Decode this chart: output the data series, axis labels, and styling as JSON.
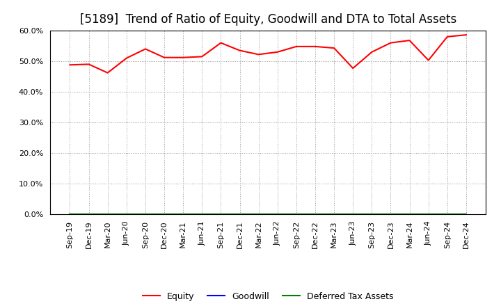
{
  "title": "[5189]  Trend of Ratio of Equity, Goodwill and DTA to Total Assets",
  "x_labels": [
    "Sep-19",
    "Dec-19",
    "Mar-20",
    "Jun-20",
    "Sep-20",
    "Dec-20",
    "Mar-21",
    "Jun-21",
    "Sep-21",
    "Dec-21",
    "Mar-22",
    "Jun-22",
    "Sep-22",
    "Dec-22",
    "Mar-23",
    "Jun-23",
    "Sep-23",
    "Dec-23",
    "Mar-24",
    "Jun-24",
    "Sep-24",
    "Dec-24"
  ],
  "equity": [
    0.488,
    0.49,
    0.462,
    0.51,
    0.54,
    0.512,
    0.512,
    0.515,
    0.56,
    0.535,
    0.522,
    0.53,
    0.548,
    0.548,
    0.543,
    0.477,
    0.53,
    0.56,
    0.568,
    0.503,
    0.58,
    0.586
  ],
  "goodwill": [
    0.0,
    0.0,
    0.0,
    0.0,
    0.0,
    0.0,
    0.0,
    0.0,
    0.0,
    0.0,
    0.0,
    0.0,
    0.0,
    0.0,
    0.0,
    0.0,
    0.0,
    0.0,
    0.0,
    0.0,
    0.0,
    0.0
  ],
  "dta": [
    0.0,
    0.0,
    0.0,
    0.0,
    0.0,
    0.0,
    0.0,
    0.0,
    0.0,
    0.0,
    0.0,
    0.0,
    0.0,
    0.0,
    0.0,
    0.0,
    0.0,
    0.0,
    0.0,
    0.0,
    0.0,
    0.0
  ],
  "equity_color": "#ff0000",
  "goodwill_color": "#0000ff",
  "dta_color": "#008000",
  "ylim": [
    0.0,
    0.6
  ],
  "yticks": [
    0.0,
    0.1,
    0.2,
    0.3,
    0.4,
    0.5,
    0.6
  ],
  "background_color": "#ffffff",
  "plot_bg_color": "#ffffff",
  "grid_color": "#999999",
  "title_fontsize": 12,
  "tick_fontsize": 8,
  "legend_labels": [
    "Equity",
    "Goodwill",
    "Deferred Tax Assets"
  ]
}
